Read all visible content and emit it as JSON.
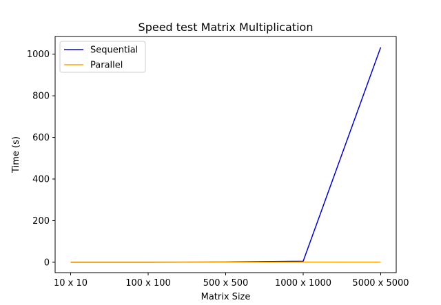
{
  "chart_data": {
    "type": "line",
    "title": "Speed test Matrix Multiplication",
    "xlabel": "Matrix Size",
    "ylabel": "Time (s)",
    "categories": [
      "10 x 10",
      "100 x 100",
      "500 x 500",
      "1000 x 1000",
      "5000 x 5000"
    ],
    "ylim": [
      -50,
      1085
    ],
    "yticks": [
      0,
      200,
      400,
      600,
      800,
      1000
    ],
    "grid": false,
    "legend_position": "top-left",
    "series": [
      {
        "name": "Sequential",
        "color": "#0000cc",
        "values": [
          0,
          0.1,
          1.5,
          5,
          1033
        ]
      },
      {
        "name": "Parallel",
        "color": "#ffa500",
        "values": [
          0.1,
          0.1,
          0.3,
          0.8,
          0.5
        ]
      }
    ]
  }
}
